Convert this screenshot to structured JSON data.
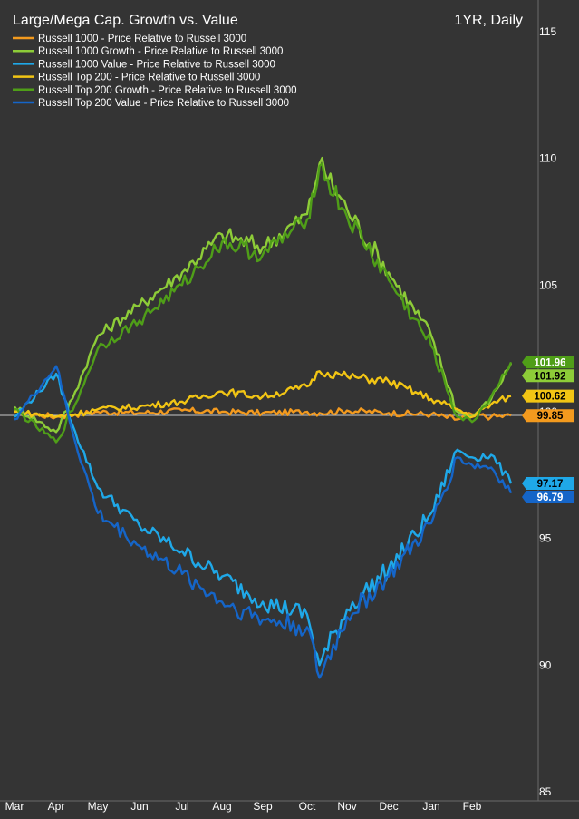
{
  "chart_data": {
    "type": "line",
    "title": "Large/Mega Cap. Growth vs. Value",
    "subtitle": "1YR, Daily",
    "x_ticks": [
      "Mar",
      "Apr",
      "May",
      "Jun",
      "Jul",
      "Aug",
      "Sep",
      "Oct",
      "Nov",
      "Dec",
      "Jan",
      "Feb"
    ],
    "ylim": [
      85,
      115
    ],
    "y_ticks": [
      85,
      90,
      95,
      100,
      105,
      110,
      115
    ],
    "x_points": [
      "Mar 1",
      "Apr 1",
      "Apr 15",
      "May 1",
      "Jun 1",
      "Jul 1",
      "Aug 1",
      "Sep 1",
      "Oct 1",
      "Oct 10",
      "Nov 1",
      "Dec 1",
      "Jan 1",
      "Jan 20",
      "Feb 1",
      "Feb 15",
      "Feb 28"
    ],
    "legend_position": "top-left",
    "grid": false,
    "colors": {
      "background": "#343434",
      "reference_line": "#c8c8c8"
    },
    "series": [
      {
        "name": "Russell 1000 - Price Relative to Russell 3000",
        "color": "#f39a1e",
        "end_label": "99.85",
        "label_text_color": "#000000",
        "values": [
          100.0,
          99.8,
          99.9,
          100.0,
          99.95,
          100.05,
          100.0,
          99.95,
          100.0,
          99.95,
          100.05,
          99.95,
          99.9,
          99.7,
          99.9,
          99.8,
          99.85
        ]
      },
      {
        "name": "Russell 1000 Growth - Price Relative to Russell 3000",
        "color": "#8dcc38",
        "end_label": "101.92",
        "label_text_color": "#000000",
        "values": [
          100.2,
          99.2,
          100.8,
          103.0,
          104.2,
          105.5,
          107.0,
          106.5,
          107.8,
          109.8,
          108.0,
          105.5,
          103.0,
          100.0,
          99.8,
          100.5,
          101.92
        ]
      },
      {
        "name": "Russell 1000 Value - Price Relative to Russell 3000",
        "color": "#1fa8e8",
        "end_label": "97.17",
        "label_text_color": "#000000",
        "values": [
          99.8,
          101.5,
          99.2,
          97.0,
          95.5,
          94.5,
          93.5,
          92.5,
          92.0,
          90.0,
          92.2,
          93.8,
          96.0,
          98.5,
          98.2,
          98.3,
          97.17
        ]
      },
      {
        "name": "Russell Top 200 - Price Relative to Russell 3000",
        "color": "#f2c514",
        "end_label": "100.62",
        "label_text_color": "#000000",
        "values": [
          100.0,
          99.8,
          99.9,
          100.1,
          100.2,
          100.4,
          100.8,
          100.6,
          101.0,
          101.6,
          101.4,
          101.2,
          100.5,
          100.1,
          99.8,
          100.3,
          100.62
        ]
      },
      {
        "name": "Russell Top 200 Growth - Price Relative to Russell 3000",
        "color": "#4f9e18",
        "end_label": "101.96",
        "label_text_color": "#ffffff",
        "values": [
          100.1,
          98.8,
          100.3,
          102.5,
          103.6,
          105.0,
          106.7,
          106.2,
          107.6,
          109.7,
          107.7,
          105.2,
          102.6,
          99.8,
          99.6,
          100.6,
          101.96
        ]
      },
      {
        "name": "Russell Top 200 Value - Price Relative to Russell 3000",
        "color": "#1565c8",
        "end_label": "96.79",
        "label_text_color": "#ffffff",
        "values": [
          99.7,
          101.8,
          98.8,
          96.0,
          94.7,
          93.6,
          92.5,
          91.8,
          91.5,
          89.5,
          91.9,
          93.5,
          95.6,
          98.2,
          97.9,
          97.8,
          96.79
        ]
      }
    ]
  }
}
